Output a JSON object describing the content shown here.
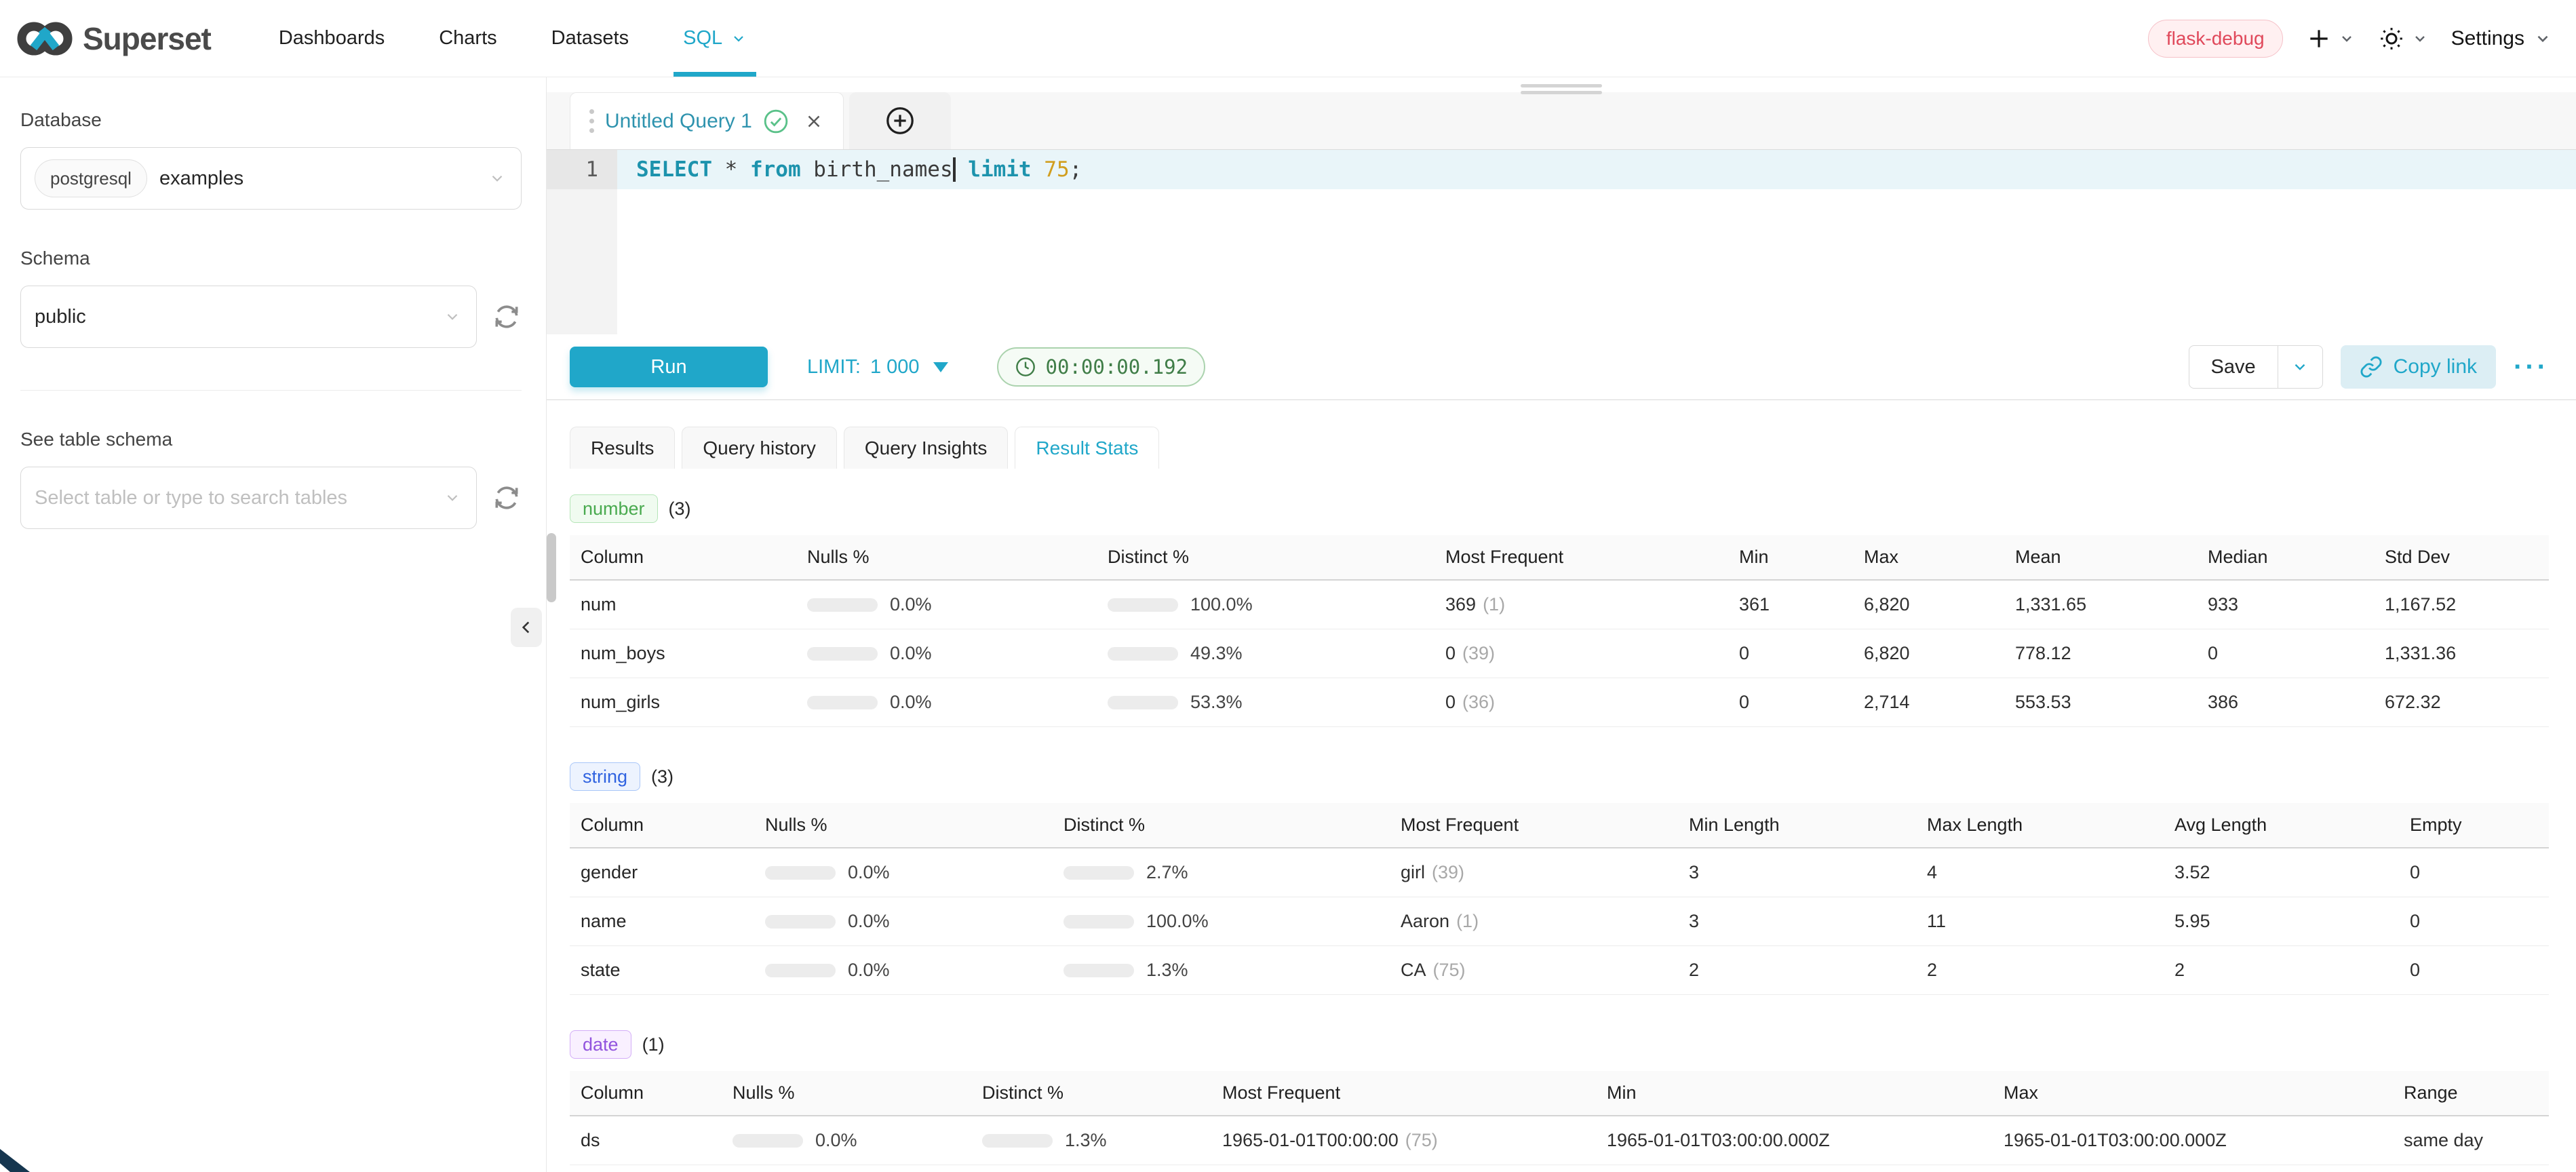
{
  "navbar": {
    "brand": "Superset",
    "items": [
      {
        "label": "Dashboards",
        "active": false,
        "caret": false
      },
      {
        "label": "Charts",
        "active": false,
        "caret": false
      },
      {
        "label": "Datasets",
        "active": false,
        "caret": false
      },
      {
        "label": "SQL",
        "active": true,
        "caret": true
      }
    ],
    "environment_tag": "flask-debug",
    "settings_label": "Settings"
  },
  "sidebar": {
    "database_label": "Database",
    "database_type": "postgresql",
    "database_name": "examples",
    "schema_label": "Schema",
    "schema_value": "public",
    "table_label": "See table schema",
    "table_placeholder": "Select table or type to search tables"
  },
  "editor": {
    "tab_title": "Untitled Query 1",
    "line_number": "1",
    "sql_text": "SELECT * from birth_names limit 75;",
    "sql_tokens": [
      {
        "text": "SELECT",
        "type": "keyword"
      },
      {
        "text": " * ",
        "type": "plain"
      },
      {
        "text": "from",
        "type": "keyword"
      },
      {
        "text": " birth_names",
        "type": "plain",
        "cursor": true
      },
      {
        "text": " ",
        "type": "plain"
      },
      {
        "text": "limit",
        "type": "keyword"
      },
      {
        "text": " ",
        "type": "plain"
      },
      {
        "text": "75",
        "type": "number"
      },
      {
        "text": ";",
        "type": "plain"
      }
    ]
  },
  "toolbar": {
    "run_label": "Run",
    "limit_label": "LIMIT:",
    "limit_value": "1 000",
    "timer_value": "00:00:00.192",
    "save_label": "Save",
    "copy_link_label": "Copy link",
    "more_label": "···"
  },
  "results": {
    "tabs": [
      {
        "label": "Results",
        "active": false
      },
      {
        "label": "Query history",
        "active": false
      },
      {
        "label": "Query Insights",
        "active": false
      },
      {
        "label": "Result Stats",
        "active": true
      }
    ],
    "sections": [
      {
        "key": "number",
        "type_label": "number",
        "count_label": "(3)",
        "headers": [
          "Column",
          "Nulls %",
          "Distinct %",
          "Most Frequent",
          "Min",
          "Max",
          "Mean",
          "Median",
          "Std Dev"
        ],
        "rows": [
          {
            "name": "num",
            "nulls": {
              "pct": "0.0%",
              "fill": 0
            },
            "distinct": {
              "pct": "100.0%",
              "fill": 100
            },
            "most_frequent": {
              "value": "369",
              "count": "(1)"
            },
            "values": [
              "361",
              "6,820",
              "1,331.65",
              "933",
              "1,167.52"
            ]
          },
          {
            "name": "num_boys",
            "nulls": {
              "pct": "0.0%",
              "fill": 0
            },
            "distinct": {
              "pct": "49.3%",
              "fill": 49.3
            },
            "most_frequent": {
              "value": "0",
              "count": "(39)"
            },
            "values": [
              "0",
              "6,820",
              "778.12",
              "0",
              "1,331.36"
            ]
          },
          {
            "name": "num_girls",
            "nulls": {
              "pct": "0.0%",
              "fill": 0
            },
            "distinct": {
              "pct": "53.3%",
              "fill": 53.3
            },
            "most_frequent": {
              "value": "0",
              "count": "(36)"
            },
            "values": [
              "0",
              "2,714",
              "553.53",
              "386",
              "672.32"
            ]
          }
        ]
      },
      {
        "key": "string",
        "type_label": "string",
        "count_label": "(3)",
        "headers": [
          "Column",
          "Nulls %",
          "Distinct %",
          "Most Frequent",
          "Min Length",
          "Max Length",
          "Avg Length",
          "Empty"
        ],
        "rows": [
          {
            "name": "gender",
            "nulls": {
              "pct": "0.0%",
              "fill": 0
            },
            "distinct": {
              "pct": "2.7%",
              "fill": 7
            },
            "most_frequent": {
              "value": "girl",
              "count": "(39)"
            },
            "values": [
              "3",
              "4",
              "3.52",
              "0"
            ]
          },
          {
            "name": "name",
            "nulls": {
              "pct": "0.0%",
              "fill": 0
            },
            "distinct": {
              "pct": "100.0%",
              "fill": 100
            },
            "most_frequent": {
              "value": "Aaron",
              "count": "(1)"
            },
            "values": [
              "3",
              "11",
              "5.95",
              "0"
            ]
          },
          {
            "name": "state",
            "nulls": {
              "pct": "0.0%",
              "fill": 0
            },
            "distinct": {
              "pct": "1.3%",
              "fill": 6
            },
            "most_frequent": {
              "value": "CA",
              "count": "(75)"
            },
            "values": [
              "2",
              "2",
              "2",
              "0"
            ]
          }
        ]
      },
      {
        "key": "date",
        "type_label": "date",
        "count_label": "(1)",
        "headers": [
          "Column",
          "Nulls %",
          "Distinct %",
          "Most Frequent",
          "Min",
          "Max",
          "Range"
        ],
        "rows": [
          {
            "name": "ds",
            "nulls": {
              "pct": "0.0%",
              "fill": 0
            },
            "distinct": {
              "pct": "1.3%",
              "fill": 6
            },
            "most_frequent": {
              "value": "1965-01-01T00:00:00",
              "count": "(75)"
            },
            "values": [
              "1965-01-01T03:00:00.000Z",
              "1965-01-01T03:00:00.000Z",
              "same day"
            ]
          }
        ]
      }
    ]
  },
  "colors": {
    "accent_teal": "#20a7c9",
    "bar_green": "#5ac189",
    "number_badge_green": "#49aa4f",
    "string_badge_blue": "#3063e0",
    "date_badge_purple": "#9254de",
    "env_tag_red": "#e0485a",
    "timer_green": "#3f7d47",
    "sql_keyword_teal": "#1d93ad",
    "sql_number_orange": "#d19e1f"
  }
}
